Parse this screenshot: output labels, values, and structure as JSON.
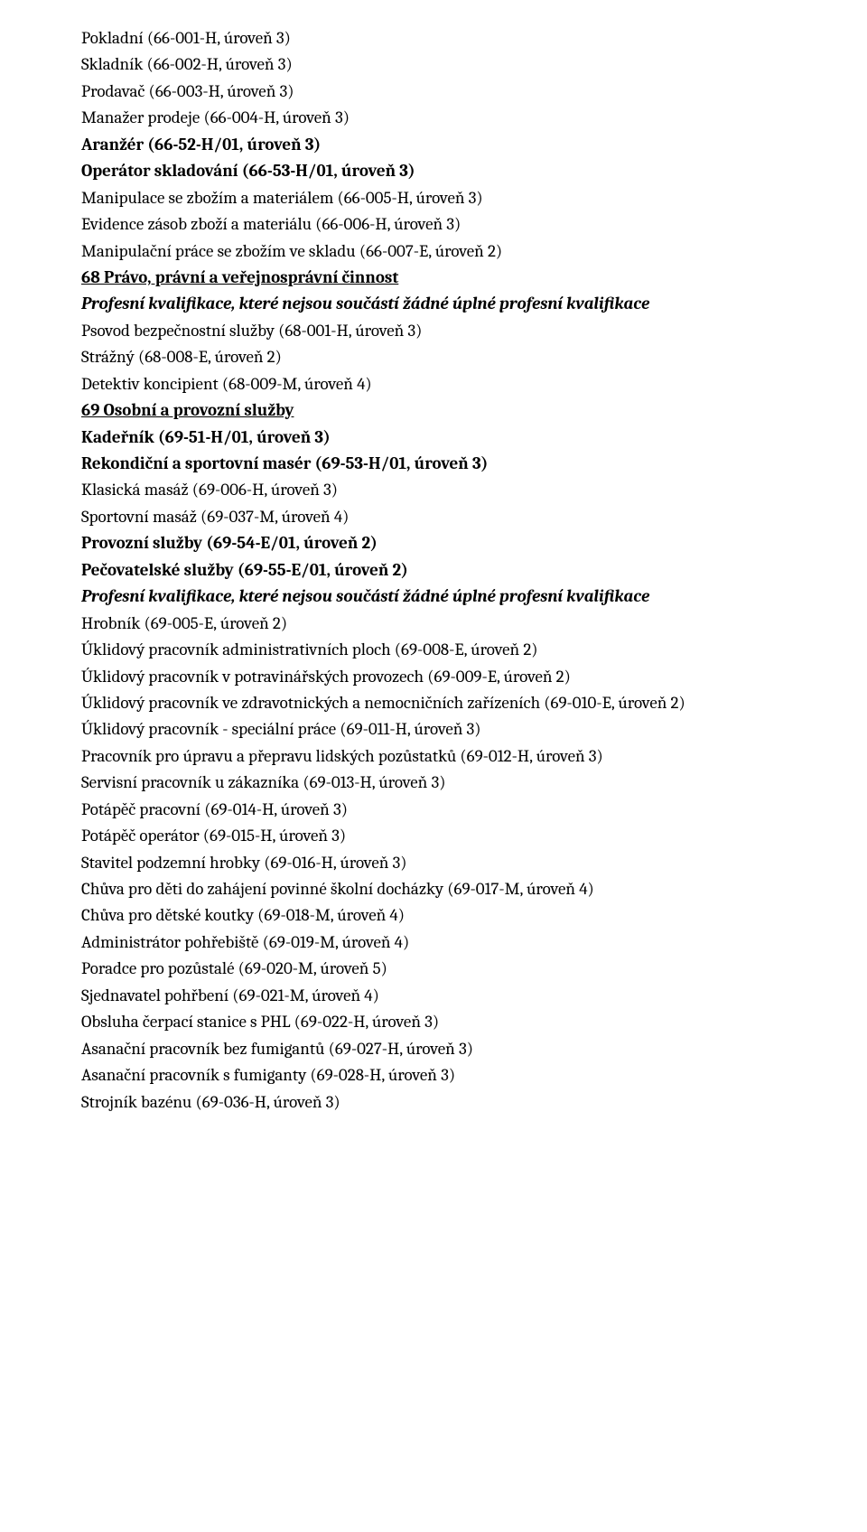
{
  "lines": [
    {
      "text": "Pokladní (66-001-H, úroveň 3)",
      "cls": "plain"
    },
    {
      "text": "Skladník (66-002-H, úroveň 3)",
      "cls": "plain"
    },
    {
      "text": "Prodavač (66-003-H, úroveň 3)",
      "cls": "plain"
    },
    {
      "text": "Manažer prodeje (66-004-H, úroveň 3)",
      "cls": "plain"
    },
    {
      "text": "Aranžér (66-52-H/01, úroveň 3)",
      "cls": "bold"
    },
    {
      "text": "Operátor skladování (66-53-H/01, úroveň 3)",
      "cls": "bold"
    },
    {
      "text": "Manipulace se zbožím a materiálem (66-005-H, úroveň 3)",
      "cls": "plain"
    },
    {
      "text": "Evidence zásob zboží a materiálu (66-006-H, úroveň 3)",
      "cls": "plain"
    },
    {
      "text": "Manipulační práce se zbožím ve skladu (66-007-E, úroveň 2)",
      "cls": "plain"
    },
    {
      "text": "68 Právo, právní a veřejnosprávní činnost",
      "cls": "section-head"
    },
    {
      "text": "Profesní kvalifikace, které nejsou součástí žádné úplné profesní kvalifikace",
      "cls": "italic-bold"
    },
    {
      "text": "Psovod bezpečnostní služby (68-001-H, úroveň 3)",
      "cls": "plain"
    },
    {
      "text": "Strážný (68-008-E, úroveň 2)",
      "cls": "plain"
    },
    {
      "text": "Detektiv koncipient (68-009-M, úroveň 4)",
      "cls": "plain"
    },
    {
      "text": "69 Osobní a provozní služby",
      "cls": "section-head"
    },
    {
      "text": "Kadeřník (69-51-H/01, úroveň 3)",
      "cls": "bold"
    },
    {
      "text": "Rekondiční a sportovní masér (69-53-H/01, úroveň 3)",
      "cls": "bold"
    },
    {
      "text": "Klasická masáž (69-006-H, úroveň 3)",
      "cls": "plain"
    },
    {
      "text": "Sportovní masáž (69-037-M, úroveň 4)",
      "cls": "plain"
    },
    {
      "text": "Provozní služby (69-54-E/01, úroveň 2)",
      "cls": "bold"
    },
    {
      "text": "Pečovatelské služby (69-55-E/01, úroveň 2)",
      "cls": "bold"
    },
    {
      "text": "Profesní kvalifikace, které nejsou součástí žádné úplné profesní kvalifikace",
      "cls": "italic-bold"
    },
    {
      "text": "Hrobník (69-005-E, úroveň 2)",
      "cls": "plain"
    },
    {
      "text": "Úklidový pracovník administrativních ploch (69-008-E, úroveň 2)",
      "cls": "plain"
    },
    {
      "text": "Úklidový pracovník v potravinářských provozech (69-009-E, úroveň 2)",
      "cls": "plain"
    },
    {
      "text": "Úklidový pracovník ve zdravotnických a nemocničních zařízeních (69-010-E, úroveň 2)",
      "cls": "plain"
    },
    {
      "text": "Úklidový pracovník - speciální práce (69-011-H, úroveň 3)",
      "cls": "plain"
    },
    {
      "text": "Pracovník pro úpravu a přepravu lidských pozůstatků (69-012-H, úroveň 3)",
      "cls": "plain"
    },
    {
      "text": "Servisní pracovník u zákazníka (69-013-H, úroveň 3)",
      "cls": "plain"
    },
    {
      "text": "Potápěč pracovní (69-014-H, úroveň 3)",
      "cls": "plain"
    },
    {
      "text": "Potápěč operátor (69-015-H, úroveň 3)",
      "cls": "plain"
    },
    {
      "text": "Stavitel podzemní hrobky (69-016-H, úroveň 3)",
      "cls": "plain"
    },
    {
      "text": "Chůva pro děti do zahájení povinné školní docházky (69-017-M, úroveň 4)",
      "cls": "plain"
    },
    {
      "text": "Chůva pro dětské koutky (69-018-M, úroveň 4)",
      "cls": "plain"
    },
    {
      "text": "Administrátor pohřebiště (69-019-M, úroveň 4)",
      "cls": "plain"
    },
    {
      "text": "Poradce pro pozůstalé (69-020-M, úroveň 5)",
      "cls": "plain"
    },
    {
      "text": "Sjednavatel pohřbení (69-021-M, úroveň 4)",
      "cls": "plain"
    },
    {
      "text": "Obsluha čerpací stanice s PHL (69-022-H, úroveň 3)",
      "cls": "plain"
    },
    {
      "text": "Asanační pracovník bez fumigantů (69-027-H, úroveň 3)",
      "cls": "plain"
    },
    {
      "text": "Asanační pracovník s fumiganty (69-028-H, úroveň 3)",
      "cls": "plain"
    },
    {
      "text": "Strojník bazénu (69-036-H, úroveň 3)",
      "cls": "plain"
    }
  ]
}
